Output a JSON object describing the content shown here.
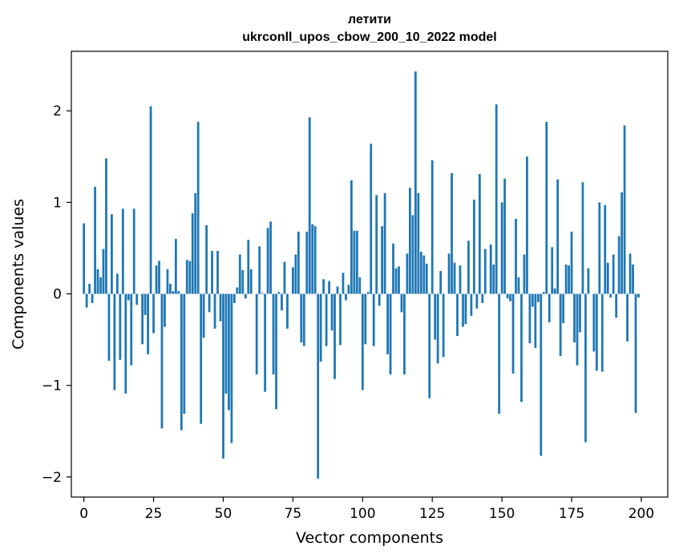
{
  "chart_data": {
    "type": "bar",
    "title": "летити",
    "subtitle": "ukrconll_upos_cbow_200_10_2022 model",
    "xlabel": "Vector components",
    "ylabel": "Components values",
    "xlim": [
      -4.5,
      209.5
    ],
    "ylim": [
      -2.22,
      2.65
    ],
    "xticks": [
      0,
      25,
      50,
      75,
      100,
      125,
      150,
      175,
      200
    ],
    "xtick_labels": [
      "0",
      "25",
      "50",
      "75",
      "100",
      "125",
      "150",
      "175",
      "200"
    ],
    "yticks": [
      -2,
      -1,
      0,
      1,
      2
    ],
    "ytick_labels": [
      "−2",
      "−1",
      "0",
      "1",
      "2"
    ],
    "grid": false,
    "legend": "none",
    "bar_color": "#1f77b4",
    "x": [
      0,
      1,
      2,
      3,
      4,
      5,
      6,
      7,
      8,
      9,
      10,
      11,
      12,
      13,
      14,
      15,
      16,
      17,
      18,
      19,
      20,
      21,
      22,
      23,
      24,
      25,
      26,
      27,
      28,
      29,
      30,
      31,
      32,
      33,
      34,
      35,
      36,
      37,
      38,
      39,
      40,
      41,
      42,
      43,
      44,
      45,
      46,
      47,
      48,
      49,
      50,
      51,
      52,
      53,
      54,
      55,
      56,
      57,
      58,
      59,
      60,
      61,
      62,
      63,
      64,
      65,
      66,
      67,
      68,
      69,
      70,
      71,
      72,
      73,
      74,
      75,
      76,
      77,
      78,
      79,
      80,
      81,
      82,
      83,
      84,
      85,
      86,
      87,
      88,
      89,
      90,
      91,
      92,
      93,
      94,
      95,
      96,
      97,
      98,
      99,
      100,
      101,
      102,
      103,
      104,
      105,
      106,
      107,
      108,
      109,
      110,
      111,
      112,
      113,
      114,
      115,
      116,
      117,
      118,
      119,
      120,
      121,
      122,
      123,
      124,
      125,
      126,
      127,
      128,
      129,
      130,
      131,
      132,
      133,
      134,
      135,
      136,
      137,
      138,
      139,
      140,
      141,
      142,
      143,
      144,
      145,
      146,
      147,
      148,
      149,
      150,
      151,
      152,
      153,
      154,
      155,
      156,
      157,
      158,
      159,
      160,
      161,
      162,
      163,
      164,
      165,
      166,
      167,
      168,
      169,
      170,
      171,
      172,
      173,
      174,
      175,
      176,
      177,
      178,
      179,
      180,
      181,
      182,
      183,
      184,
      185,
      186,
      187,
      188,
      189,
      190,
      191,
      192,
      193,
      194,
      195,
      196,
      197,
      198,
      199
    ],
    "values": [
      0.77,
      -0.15,
      0.11,
      -0.1,
      1.17,
      0.27,
      0.18,
      0.49,
      1.48,
      -0.73,
      0.87,
      -1.05,
      0.22,
      -0.72,
      0.93,
      -1.09,
      -0.07,
      -0.78,
      0.93,
      -0.12,
      0.0,
      -0.55,
      -0.23,
      -0.66,
      2.05,
      -0.43,
      0.31,
      0.36,
      -1.47,
      -0.36,
      0.27,
      0.11,
      0.03,
      0.6,
      0.03,
      -1.49,
      -1.31,
      0.37,
      0.36,
      0.88,
      1.1,
      1.88,
      -1.42,
      -0.48,
      0.75,
      -0.2,
      0.47,
      -0.38,
      0.47,
      -0.3,
      -1.8,
      -1.09,
      -1.27,
      -1.63,
      -0.1,
      0.07,
      0.43,
      0.26,
      -0.05,
      0.59,
      0.27,
      0.0,
      -0.88,
      0.52,
      0.01,
      -1.07,
      0.72,
      0.79,
      -0.88,
      -1.26,
      0.02,
      -0.18,
      0.35,
      -0.38,
      0.0,
      0.29,
      0.43,
      0.68,
      -0.53,
      -0.57,
      0.68,
      1.93,
      0.76,
      0.74,
      -2.02,
      -0.74,
      0.16,
      -0.57,
      0.14,
      -0.4,
      -0.93,
      0.08,
      -0.56,
      0.23,
      -0.07,
      0.1,
      1.24,
      0.69,
      0.69,
      0.18,
      -1.05,
      -0.55,
      0.02,
      1.64,
      -0.57,
      1.08,
      -0.13,
      0.74,
      1.1,
      -0.66,
      -0.88,
      0.55,
      0.28,
      0.3,
      -0.2,
      -0.88,
      0.44,
      1.16,
      0.86,
      2.43,
      1.1,
      0.46,
      0.42,
      0.33,
      -1.14,
      1.46,
      -0.5,
      -0.76,
      0.25,
      -0.69,
      0.0,
      0.44,
      1.32,
      0.34,
      -0.46,
      0.31,
      -0.36,
      -0.33,
      0.58,
      -0.24,
      1.03,
      -0.16,
      1.31,
      -0.1,
      0.49,
      0.0,
      0.54,
      0.32,
      2.07,
      -1.31,
      1.0,
      1.26,
      -0.05,
      -0.08,
      -0.87,
      0.82,
      0.18,
      -1.18,
      0.43,
      1.5,
      -0.54,
      -0.14,
      -0.59,
      -0.09,
      -1.77,
      0.02,
      1.88,
      -0.31,
      0.51,
      0.06,
      1.25,
      -0.68,
      -0.32,
      0.32,
      0.31,
      0.68,
      -0.53,
      -0.78,
      -0.42,
      1.22,
      -1.62,
      0.28,
      0.0,
      -0.63,
      -0.84,
      1.0,
      -0.85,
      0.97,
      0.34,
      -0.04,
      0.43,
      -0.26,
      0.63,
      1.11,
      1.84,
      -0.52,
      0.44,
      0.32,
      -1.3,
      -0.04
    ]
  }
}
